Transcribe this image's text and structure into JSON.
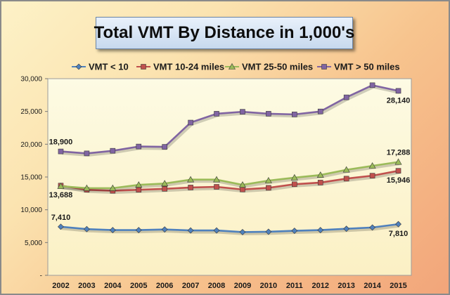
{
  "chart_data": {
    "type": "line",
    "title": "Total VMT By Distance in 1,000's",
    "xlabel": "",
    "ylabel": "",
    "x": [
      "2002",
      "2003",
      "2004",
      "2005",
      "2006",
      "2007",
      "2008",
      "2009",
      "2010",
      "2011",
      "2012",
      "2013",
      "2014",
      "2015"
    ],
    "ylim": [
      0,
      30000
    ],
    "yticks": [
      {
        "value": 0,
        "label": "-"
      },
      {
        "value": 5000,
        "label": "5,000"
      },
      {
        "value": 10000,
        "label": "10,000"
      },
      {
        "value": 15000,
        "label": "15,000"
      },
      {
        "value": 20000,
        "label": "20,000"
      },
      {
        "value": 25000,
        "label": "25,000"
      },
      {
        "value": 30000,
        "label": "30,000"
      }
    ],
    "grid": false,
    "legend_position": "top",
    "series": [
      {
        "name": "VMT < 10",
        "color": "#4f81bd",
        "marker": "diamond",
        "values": [
          7410,
          7050,
          6900,
          6900,
          7000,
          6850,
          6850,
          6600,
          6650,
          6800,
          6900,
          7100,
          7300,
          7810
        ]
      },
      {
        "name": "VMT 10-24 miles",
        "color": "#c0504d",
        "marker": "square",
        "values": [
          13688,
          13050,
          12900,
          13050,
          13200,
          13400,
          13500,
          13100,
          13350,
          13900,
          14150,
          14750,
          15200,
          15946
        ]
      },
      {
        "name": "VMT 25-50 miles",
        "color": "#9bbb59",
        "marker": "triangle",
        "values": [
          13600,
          13300,
          13300,
          13800,
          14000,
          14600,
          14600,
          13800,
          14450,
          14900,
          15300,
          16100,
          16700,
          17288
        ]
      },
      {
        "name": "VMT > 50 miles",
        "color": "#8064a2",
        "marker": "square",
        "values": [
          18900,
          18600,
          19000,
          19650,
          19600,
          23300,
          24650,
          24950,
          24650,
          24550,
          25000,
          27150,
          29000,
          28140
        ]
      }
    ],
    "data_labels": [
      {
        "series": 3,
        "index": 0,
        "text": "18,900",
        "pos": "above"
      },
      {
        "series": 3,
        "index": 13,
        "text": "28,140",
        "pos": "below"
      },
      {
        "series": 1,
        "index": 0,
        "text": "13,688",
        "pos": "below"
      },
      {
        "series": 2,
        "index": 13,
        "text": "17,288",
        "pos": "above"
      },
      {
        "series": 1,
        "index": 13,
        "text": "15,946",
        "pos": "below"
      },
      {
        "series": 0,
        "index": 0,
        "text": "7,410",
        "pos": "above"
      },
      {
        "series": 0,
        "index": 13,
        "text": "7,810",
        "pos": "below"
      }
    ]
  }
}
